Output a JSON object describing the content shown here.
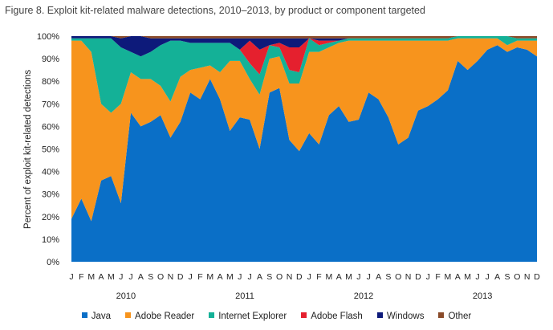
{
  "chart_data": {
    "type": "area",
    "stacked": true,
    "title": "Figure 8. Exploit kit-related malware detections, 2010–2013, by product or component targeted",
    "ylabel": "Percent of exploit kit-related detections",
    "xlabel": "",
    "ylim": [
      0,
      100
    ],
    "yticks": [
      "0%",
      "10%",
      "20%",
      "30%",
      "40%",
      "50%",
      "60%",
      "70%",
      "80%",
      "90%",
      "100%"
    ],
    "month_labels": [
      "J",
      "F",
      "M",
      "A",
      "M",
      "J",
      "J",
      "A",
      "S",
      "O",
      "N",
      "D",
      "J",
      "F",
      "M",
      "A",
      "M",
      "J",
      "J",
      "A",
      "S",
      "O",
      "N",
      "D",
      "J",
      "F",
      "M",
      "A",
      "M",
      "J",
      "J",
      "A",
      "S",
      "O",
      "N",
      "D",
      "J",
      "F",
      "M",
      "A",
      "M",
      "J",
      "J",
      "A",
      "S",
      "O",
      "N",
      "D"
    ],
    "years": [
      "2010",
      "2011",
      "2012",
      "2013"
    ],
    "legend_position": "bottom",
    "series": [
      {
        "name": "Java",
        "color": "#0a6fc7",
        "values": [
          19,
          28,
          18,
          36,
          38,
          26,
          66,
          60,
          62,
          65,
          55,
          62,
          75,
          72,
          81,
          72,
          58,
          64,
          63,
          50,
          75,
          77,
          54,
          49,
          57,
          52,
          65,
          69,
          62,
          63,
          75,
          72,
          64,
          52,
          55,
          67,
          69,
          72,
          76,
          89,
          85,
          89,
          94,
          96,
          93,
          95,
          94,
          91
        ]
      },
      {
        "name": "Adobe Reader",
        "color": "#f7941d",
        "values": [
          79,
          70,
          75,
          34,
          28,
          44,
          18,
          21,
          19,
          13,
          16,
          20,
          10,
          14,
          6,
          12,
          31,
          25,
          18,
          24,
          15,
          14,
          25,
          30,
          36,
          41,
          30,
          28,
          36,
          35,
          23,
          26,
          34,
          46,
          43,
          31,
          29,
          26,
          22,
          10,
          14,
          10,
          5,
          3,
          3,
          3,
          4,
          7
        ]
      },
      {
        "name": "Internet Explorer",
        "color": "#14b197",
        "values": [
          1,
          1,
          6,
          29,
          33,
          25,
          9,
          10,
          12,
          18,
          27,
          16,
          12,
          11,
          10,
          13,
          8,
          5,
          7,
          9,
          6,
          4,
          6,
          5,
          6,
          3,
          2,
          1,
          1,
          1,
          1,
          1,
          1,
          1,
          1,
          1,
          1,
          1,
          1,
          1,
          1,
          1,
          1,
          1,
          4,
          1,
          1,
          1
        ]
      },
      {
        "name": "Adobe Flash",
        "color": "#e5202e",
        "values": [
          0,
          0,
          0,
          0,
          0,
          0,
          0,
          0,
          0,
          0,
          0,
          0,
          0,
          0,
          0,
          0,
          0,
          0,
          10,
          11,
          0,
          2,
          10,
          11,
          0,
          2,
          1,
          0,
          0,
          0,
          0,
          0,
          0,
          0,
          0,
          0,
          0,
          0,
          0,
          0,
          0,
          0,
          0,
          0,
          0,
          0,
          0,
          0
        ]
      },
      {
        "name": "Windows",
        "color": "#0d1a7a",
        "values": [
          1,
          1,
          1,
          1,
          1,
          4,
          7,
          9,
          6,
          3,
          1,
          1,
          2,
          2,
          2,
          2,
          2,
          5,
          1,
          5,
          3,
          2,
          4,
          4,
          0,
          1,
          1,
          1,
          0,
          0,
          0,
          0,
          0,
          0,
          0,
          0,
          0,
          0,
          0,
          0,
          0,
          0,
          0,
          0,
          0,
          0,
          0,
          0
        ]
      },
      {
        "name": "Other",
        "color": "#8a4b2a",
        "values": [
          0,
          0,
          0,
          0,
          0,
          1,
          0,
          0,
          1,
          1,
          1,
          1,
          1,
          1,
          1,
          1,
          1,
          1,
          1,
          1,
          1,
          1,
          1,
          1,
          1,
          1,
          1,
          1,
          1,
          1,
          1,
          1,
          1,
          1,
          1,
          1,
          1,
          1,
          1,
          1,
          1,
          1,
          1,
          1,
          1,
          1,
          1,
          1
        ]
      }
    ]
  }
}
